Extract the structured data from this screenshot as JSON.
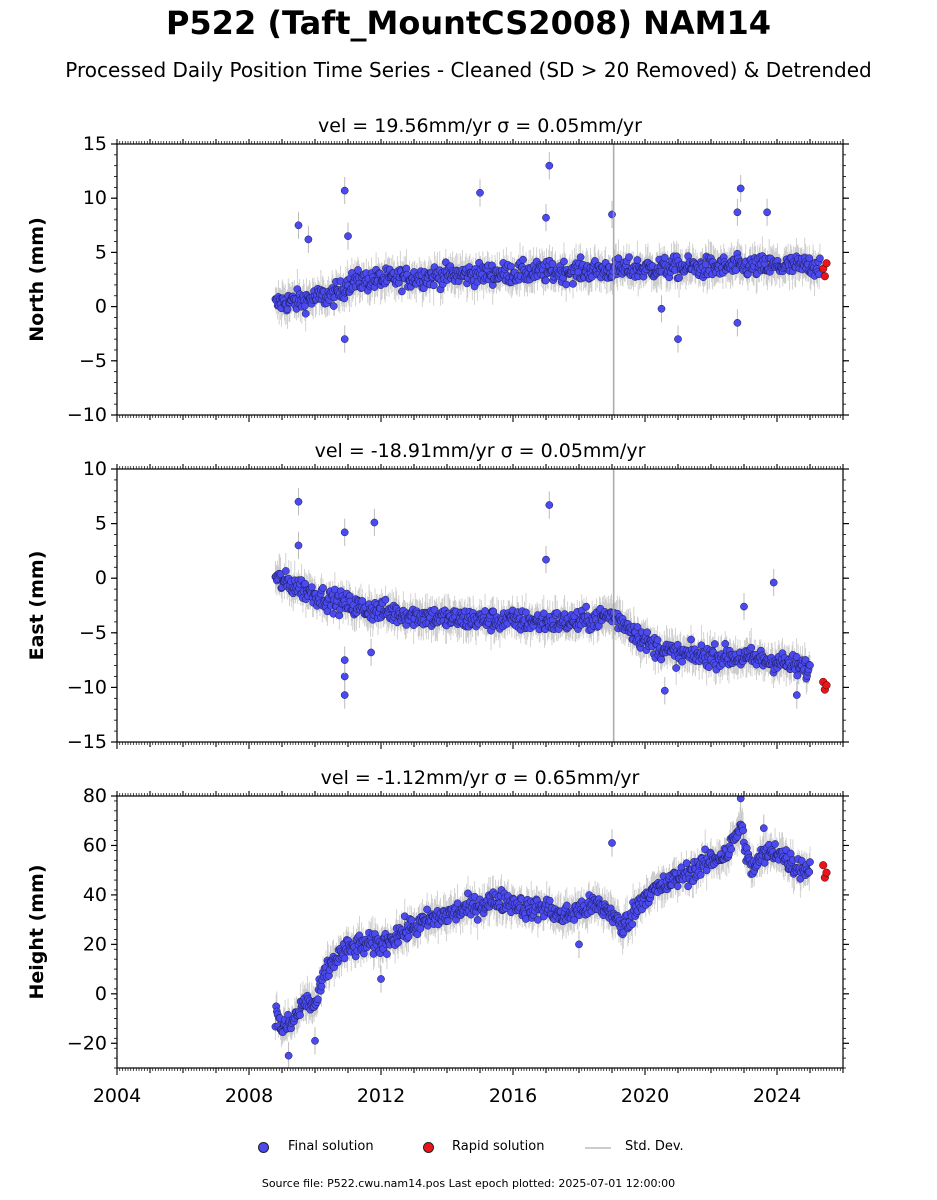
{
  "title": "P522 (Taft_MountCS2008) NAM14",
  "subtitle": "Processed Daily Position Time Series - Cleaned (SD > 20 Removed) & Detrended",
  "footer": "Source file: P522.cwu.nam14.pos  Last epoch plotted: 2025-07-01 12:00:00",
  "colors": {
    "final": "#4a4af0",
    "rapid": "#e8161a",
    "stddev": "#bdbdbd",
    "axis": "#000000"
  },
  "legend": {
    "final": "Final solution",
    "rapid": "Rapid solution",
    "stddev": "Std. Dev."
  },
  "chart_data": [
    {
      "type": "scatter",
      "title": "vel = 19.56mm/yr   σ = 0.05mm/yr",
      "ylabel": "North (mm)",
      "xlim": [
        2004,
        2026
      ],
      "ylim": [
        -10,
        15
      ],
      "yticks": [
        -10,
        -5,
        0,
        5,
        10,
        15
      ],
      "xticks": [
        2004,
        2008,
        2012,
        2016,
        2020,
        2024
      ],
      "grid": false,
      "series": [
        {
          "name": "Final solution",
          "x": [
            2008.8,
            2009.0,
            2009.5,
            2010.0,
            2010.5,
            2010.8,
            2011.0,
            2011.5,
            2012.0,
            2013.0,
            2014.0,
            2015.0,
            2016.0,
            2017.0,
            2018.0,
            2019.0,
            2020.0,
            2021.0,
            2022.0,
            2023.0,
            2024.0,
            2025.3
          ],
          "y": [
            0.2,
            0.4,
            0.5,
            0.8,
            1.0,
            1.4,
            2.2,
            2.4,
            2.5,
            2.7,
            2.9,
            3.0,
            3.1,
            3.2,
            3.3,
            3.4,
            3.5,
            3.6,
            3.6,
            3.7,
            3.7,
            3.8
          ]
        },
        {
          "name": "Rapid solution",
          "x": [
            2025.4,
            2025.45,
            2025.5
          ],
          "y": [
            3.5,
            2.8,
            4.0
          ]
        }
      ],
      "outliers": [
        [
          2010.9,
          10.7
        ],
        [
          2011.0,
          6.5
        ],
        [
          2015.0,
          10.5
        ],
        [
          2017.1,
          13.0
        ],
        [
          2017.0,
          8.2
        ],
        [
          2019.0,
          8.5
        ],
        [
          2020.5,
          -0.2
        ],
        [
          2021.0,
          -3.0
        ],
        [
          2022.9,
          10.9
        ],
        [
          2022.8,
          8.7
        ],
        [
          2023.7,
          8.7
        ],
        [
          2022.8,
          -1.5
        ],
        [
          2010.9,
          -3.0
        ],
        [
          2009.5,
          7.5
        ],
        [
          2009.8,
          6.2
        ]
      ]
    },
    {
      "type": "scatter",
      "title": "vel = -18.91mm/yr   σ = 0.05mm/yr",
      "ylabel": "East (mm)",
      "xlim": [
        2004,
        2026
      ],
      "ylim": [
        -15,
        10
      ],
      "yticks": [
        -15,
        -10,
        -5,
        0,
        5,
        10
      ],
      "xticks": [
        2004,
        2008,
        2012,
        2016,
        2020,
        2024
      ],
      "grid": false,
      "series": [
        {
          "name": "Final solution",
          "x": [
            2008.8,
            2009.0,
            2009.5,
            2010.0,
            2010.5,
            2011.0,
            2011.5,
            2012.0,
            2013.0,
            2014.0,
            2015.0,
            2016.0,
            2017.0,
            2018.0,
            2019.0,
            2019.5,
            2020.0,
            2020.5,
            2021.0,
            2022.0,
            2023.0,
            2024.0,
            2025.0
          ],
          "y": [
            0.0,
            -0.3,
            -0.8,
            -1.5,
            -2.0,
            -2.4,
            -2.8,
            -3.0,
            -3.4,
            -3.7,
            -3.8,
            -3.9,
            -4.0,
            -4.0,
            -3.4,
            -4.4,
            -5.8,
            -6.5,
            -7.0,
            -7.1,
            -7.3,
            -7.6,
            -8.4
          ]
        },
        {
          "name": "Rapid solution",
          "x": [
            2025.4,
            2025.45,
            2025.5
          ],
          "y": [
            -9.5,
            -10.2,
            -9.8
          ]
        }
      ],
      "outliers": [
        [
          2009.5,
          7.0
        ],
        [
          2009.5,
          3.0
        ],
        [
          2010.9,
          4.2
        ],
        [
          2011.8,
          5.1
        ],
        [
          2017.1,
          6.7
        ],
        [
          2017.0,
          1.7
        ],
        [
          2010.9,
          -10.7
        ],
        [
          2010.9,
          -9.0
        ],
        [
          2010.9,
          -7.5
        ],
        [
          2011.7,
          -6.8
        ],
        [
          2020.6,
          -10.3
        ],
        [
          2023.9,
          -0.4
        ],
        [
          2023.0,
          -2.6
        ],
        [
          2024.6,
          -10.7
        ]
      ]
    },
    {
      "type": "scatter",
      "title": "vel = -1.12mm/yr   σ = 0.65mm/yr",
      "ylabel": "Height (mm)",
      "xlim": [
        2004,
        2026
      ],
      "ylim": [
        -30,
        80
      ],
      "yticks": [
        -20,
        0,
        20,
        40,
        60,
        80
      ],
      "xticks": [
        2004,
        2008,
        2012,
        2016,
        2020,
        2024
      ],
      "xticklabels": [
        "2004",
        "2008",
        "2012",
        "2016",
        "2020",
        "2024"
      ],
      "grid": false,
      "series": [
        {
          "name": "Final solution",
          "x": [
            2008.8,
            2009.0,
            2009.3,
            2009.7,
            2010.0,
            2010.3,
            2010.6,
            2011.0,
            2011.5,
            2012.0,
            2012.5,
            2013.0,
            2013.5,
            2014.0,
            2014.5,
            2015.0,
            2015.5,
            2016.0,
            2016.5,
            2017.0,
            2017.5,
            2018.0,
            2018.5,
            2019.0,
            2019.3,
            2019.7,
            2020.0,
            2020.5,
            2021.0,
            2021.5,
            2022.0,
            2022.5,
            2022.9,
            2023.2,
            2023.6,
            2024.0,
            2024.5,
            2025.0
          ],
          "y": [
            -8,
            -14,
            -12,
            -3,
            -5,
            8,
            14,
            18,
            20,
            20,
            24,
            27,
            30,
            32,
            34,
            36,
            38,
            37,
            34,
            35,
            31,
            34,
            36,
            33,
            26,
            34,
            40,
            43,
            47,
            50,
            54,
            57,
            68,
            50,
            56,
            58,
            52,
            50
          ]
        },
        {
          "name": "Rapid solution",
          "x": [
            2025.4,
            2025.45,
            2025.5
          ],
          "y": [
            52,
            47,
            49
          ]
        }
      ],
      "outliers": [
        [
          2009.2,
          -25
        ],
        [
          2010.0,
          -19
        ],
        [
          2012.0,
          6
        ],
        [
          2018.0,
          20
        ],
        [
          2019.0,
          61
        ],
        [
          2022.9,
          79
        ],
        [
          2023.6,
          67
        ]
      ]
    }
  ]
}
